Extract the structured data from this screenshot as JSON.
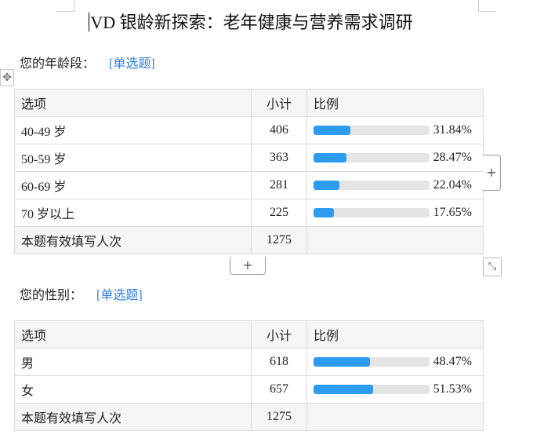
{
  "document": {
    "title": "VD 银龄新探索：老年健康与营养需求调研"
  },
  "questions": [
    {
      "label": "您的年龄段：",
      "type": "[单选题]",
      "headers": {
        "option": "选项",
        "count": "小计",
        "ratio": "比例"
      },
      "rows": [
        {
          "option": "40-49 岁",
          "count": "406",
          "pct_label": "31.84%",
          "fraction": 0.3184
        },
        {
          "option": "50-59 岁",
          "count": "363",
          "pct_label": "28.47%",
          "fraction": 0.2847
        },
        {
          "option": "60-69 岁",
          "count": "281",
          "pct_label": "22.04%",
          "fraction": 0.2204
        },
        {
          "option": "70 岁以上",
          "count": "225",
          "pct_label": "17.65%",
          "fraction": 0.1765
        }
      ],
      "total_label": "本题有效填写人次",
      "total_count": "1275"
    },
    {
      "label": "您的性别：",
      "type": "[单选题]",
      "headers": {
        "option": "选项",
        "count": "小计",
        "ratio": "比例"
      },
      "rows": [
        {
          "option": "男",
          "count": "618",
          "pct_label": "48.47%",
          "fraction": 0.4847
        },
        {
          "option": "女",
          "count": "657",
          "pct_label": "51.53%",
          "fraction": 0.5153
        }
      ],
      "total_label": "本题有效填写人次",
      "total_count": "1275"
    }
  ],
  "controls": {
    "move_icon": "move-arrows-icon",
    "add_icon": "plus-icon",
    "resize_icon": "resize-diagonal-icon",
    "add_glyph": "+"
  },
  "colors": {
    "bar_fill": "#2d9bf0",
    "bar_track": "#e4e4e4",
    "question_type": "#2e7ee0"
  }
}
